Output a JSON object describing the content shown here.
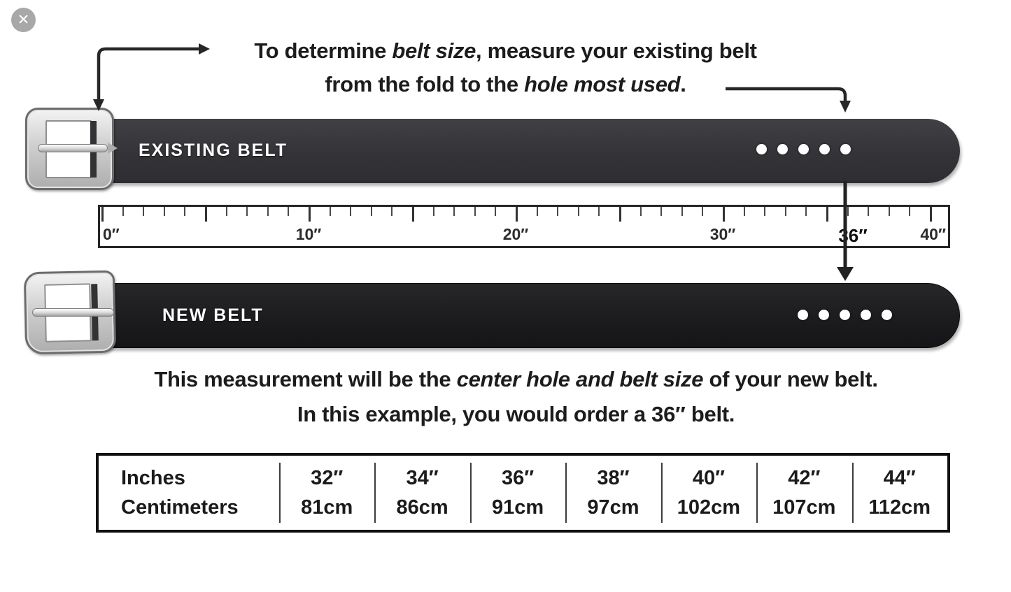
{
  "viewer": {
    "close_icon": "✕"
  },
  "instructions": {
    "line1_a": "To determine ",
    "line1_em": "belt size",
    "line1_b": ", measure your existing belt",
    "line2_a": "from the fold to the ",
    "line2_em": "hole most used",
    "line2_b": "."
  },
  "belts": {
    "existing_label": "EXISTING BELT",
    "new_label": "NEW BELT",
    "existing_hole_count": 5,
    "new_hole_count": 5
  },
  "ruler": {
    "unit": "inches",
    "range": [
      0,
      40
    ],
    "labels": [
      "0″",
      "10″",
      "20″",
      "30″",
      "36″",
      "40″"
    ],
    "highlighted_value": "36″"
  },
  "result": {
    "line1_a": "This measurement will be the ",
    "line1_em": "center hole and belt size",
    "line1_b": " of your new belt.",
    "line2": "In this example, you would order a 36″ belt."
  },
  "size_table": {
    "row1_header": "Inches",
    "row2_header": "Centimeters",
    "columns": [
      {
        "inches": "32″",
        "cm": "81cm"
      },
      {
        "inches": "34″",
        "cm": "86cm"
      },
      {
        "inches": "36″",
        "cm": "91cm"
      },
      {
        "inches": "38″",
        "cm": "97cm"
      },
      {
        "inches": "40″",
        "cm": "102cm"
      },
      {
        "inches": "42″",
        "cm": "107cm"
      },
      {
        "inches": "44″",
        "cm": "112cm"
      }
    ]
  },
  "colors": {
    "existing_belt": "#343438",
    "new_belt": "#1b1b1d",
    "buckle_silver": "#cfcfcf",
    "arrow": "#272727",
    "close_button_bg": "#a8a8a8"
  }
}
